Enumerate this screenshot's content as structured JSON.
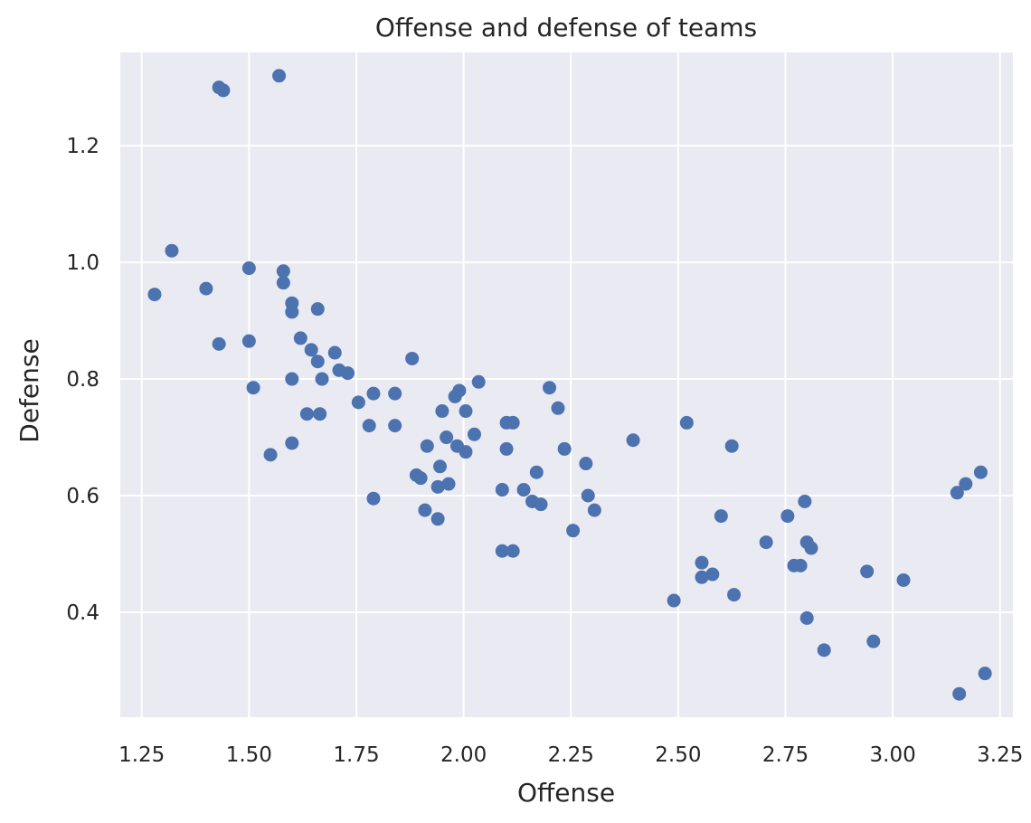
{
  "chart_data": {
    "type": "scatter",
    "title": "Offense and defense of teams",
    "xlabel": "Offense",
    "ylabel": "Defense",
    "xlim": [
      1.2,
      3.28
    ],
    "ylim": [
      0.22,
      1.36
    ],
    "grid": true,
    "background_color": "#eaeaf2",
    "marker_color": "#4c72b0",
    "xticks": [
      "1.25",
      "1.50",
      "1.75",
      "2.00",
      "2.25",
      "2.50",
      "2.75",
      "3.00",
      "3.25"
    ],
    "yticks": [
      "0.4",
      "0.6",
      "0.8",
      "1.0",
      "1.2"
    ],
    "points": [
      [
        1.57,
        1.32
      ],
      [
        1.43,
        1.3
      ],
      [
        1.44,
        1.295
      ],
      [
        1.32,
        1.02
      ],
      [
        1.28,
        0.945
      ],
      [
        1.4,
        0.955
      ],
      [
        1.5,
        0.99
      ],
      [
        1.58,
        0.985
      ],
      [
        1.58,
        0.965
      ],
      [
        1.6,
        0.93
      ],
      [
        1.6,
        0.915
      ],
      [
        1.66,
        0.92
      ],
      [
        1.43,
        0.86
      ],
      [
        1.5,
        0.865
      ],
      [
        1.62,
        0.87
      ],
      [
        1.645,
        0.85
      ],
      [
        1.7,
        0.845
      ],
      [
        1.66,
        0.83
      ],
      [
        1.71,
        0.815
      ],
      [
        1.73,
        0.81
      ],
      [
        1.6,
        0.8
      ],
      [
        1.67,
        0.8
      ],
      [
        1.51,
        0.785
      ],
      [
        1.88,
        0.835
      ],
      [
        1.755,
        0.76
      ],
      [
        1.79,
        0.775
      ],
      [
        1.84,
        0.775
      ],
      [
        1.635,
        0.74
      ],
      [
        1.665,
        0.74
      ],
      [
        1.78,
        0.72
      ],
      [
        1.84,
        0.72
      ],
      [
        1.6,
        0.69
      ],
      [
        1.55,
        0.67
      ],
      [
        1.79,
        0.595
      ],
      [
        2.035,
        0.795
      ],
      [
        1.99,
        0.78
      ],
      [
        1.98,
        0.77
      ],
      [
        2.2,
        0.785
      ],
      [
        1.95,
        0.745
      ],
      [
        2.005,
        0.745
      ],
      [
        2.22,
        0.75
      ],
      [
        2.1,
        0.725
      ],
      [
        2.115,
        0.725
      ],
      [
        1.96,
        0.7
      ],
      [
        2.025,
        0.705
      ],
      [
        1.915,
        0.685
      ],
      [
        1.985,
        0.685
      ],
      [
        2.005,
        0.675
      ],
      [
        2.1,
        0.68
      ],
      [
        2.235,
        0.68
      ],
      [
        2.285,
        0.655
      ],
      [
        1.945,
        0.65
      ],
      [
        1.89,
        0.635
      ],
      [
        1.9,
        0.63
      ],
      [
        1.94,
        0.615
      ],
      [
        1.965,
        0.62
      ],
      [
        2.17,
        0.64
      ],
      [
        2.09,
        0.61
      ],
      [
        2.14,
        0.61
      ],
      [
        2.16,
        0.59
      ],
      [
        2.18,
        0.585
      ],
      [
        2.29,
        0.6
      ],
      [
        2.305,
        0.575
      ],
      [
        1.91,
        0.575
      ],
      [
        1.94,
        0.56
      ],
      [
        2.255,
        0.54
      ],
      [
        2.09,
        0.505
      ],
      [
        2.115,
        0.505
      ],
      [
        2.395,
        0.695
      ],
      [
        2.52,
        0.725
      ],
      [
        2.625,
        0.685
      ],
      [
        2.6,
        0.565
      ],
      [
        2.555,
        0.485
      ],
      [
        2.555,
        0.46
      ],
      [
        2.58,
        0.465
      ],
      [
        2.63,
        0.43
      ],
      [
        2.49,
        0.42
      ],
      [
        2.705,
        0.52
      ],
      [
        2.755,
        0.565
      ],
      [
        2.795,
        0.59
      ],
      [
        2.77,
        0.48
      ],
      [
        2.785,
        0.48
      ],
      [
        2.8,
        0.52
      ],
      [
        2.81,
        0.51
      ],
      [
        2.8,
        0.39
      ],
      [
        2.84,
        0.335
      ],
      [
        2.94,
        0.47
      ],
      [
        2.955,
        0.35
      ],
      [
        3.025,
        0.455
      ],
      [
        3.15,
        0.605
      ],
      [
        3.17,
        0.62
      ],
      [
        3.205,
        0.64
      ],
      [
        3.155,
        0.26
      ],
      [
        3.215,
        0.295
      ]
    ]
  }
}
